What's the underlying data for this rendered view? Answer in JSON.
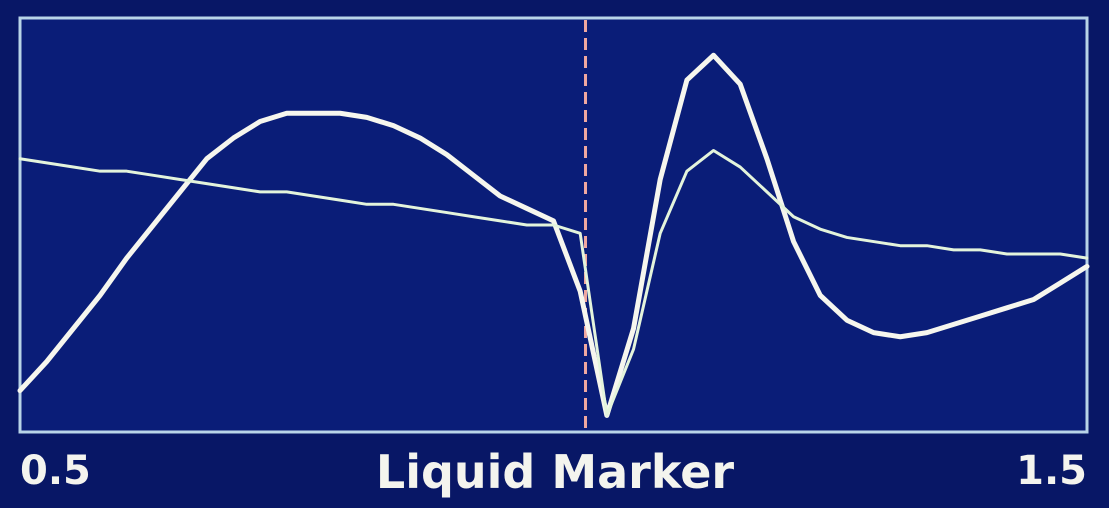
{
  "chart_data": {
    "type": "line",
    "xlabel": "Liquid Marker",
    "xlim": [
      0.5,
      1.5
    ],
    "xticks": [
      0.5,
      1.5
    ],
    "ylim": [
      0,
      100
    ],
    "marker_x": 1.03,
    "marker_color": "#f0a8a0",
    "x": [
      0.5,
      0.525,
      0.55,
      0.575,
      0.6,
      0.625,
      0.65,
      0.675,
      0.7,
      0.725,
      0.75,
      0.775,
      0.8,
      0.825,
      0.85,
      0.875,
      0.9,
      0.925,
      0.95,
      0.975,
      1.0,
      1.025,
      1.05,
      1.075,
      1.1,
      1.125,
      1.15,
      1.175,
      1.2,
      1.225,
      1.25,
      1.275,
      1.3,
      1.325,
      1.35,
      1.375,
      1.4,
      1.425,
      1.45,
      1.475,
      1.5
    ],
    "series": [
      {
        "color": "#f6f6ee",
        "width": 5,
        "values": [
          10,
          17,
          25,
          33,
          42,
          50,
          58,
          66,
          71,
          75,
          77,
          77,
          77,
          76,
          74,
          71,
          67,
          62,
          57,
          54,
          51,
          34,
          4,
          25,
          61,
          85,
          91,
          84,
          66,
          46,
          33,
          27,
          24,
          23,
          24,
          26,
          28,
          30,
          32,
          36,
          40
        ]
      },
      {
        "color": "#e4f4dc",
        "width": 3,
        "values": [
          66,
          65,
          64,
          63,
          63,
          62,
          61,
          60,
          59,
          58,
          58,
          57,
          56,
          55,
          55,
          54,
          53,
          52,
          51,
          50,
          50,
          48,
          4,
          20,
          48,
          63,
          68,
          64,
          58,
          52,
          49,
          47,
          46,
          45,
          45,
          44,
          44,
          43,
          43,
          43,
          42
        ]
      }
    ]
  }
}
